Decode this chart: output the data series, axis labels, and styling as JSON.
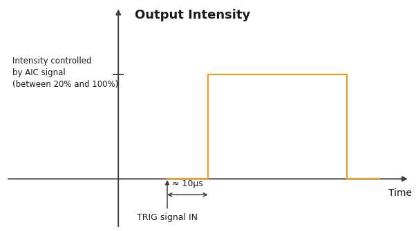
{
  "title": "Output Intensity",
  "xlabel": "Time",
  "bg_color": "#ffffff",
  "pulse_color": "#e8a020",
  "axis_color": "#404040",
  "text_color": "#1a1a1a",
  "title_fontsize": 13,
  "label_fontsize": 10,
  "annotation_fontsize": 9,
  "small_fontsize": 8.5,
  "pulse_linewidth": 1.6,
  "axis_linewidth": 1.4,
  "note_line1": "Intensity controlled",
  "note_line2": "by AIC signal",
  "note_line3": "(between 20% and 100%)",
  "delay_label": "≈ 10μs",
  "trig_label": "TRIG signal IN"
}
